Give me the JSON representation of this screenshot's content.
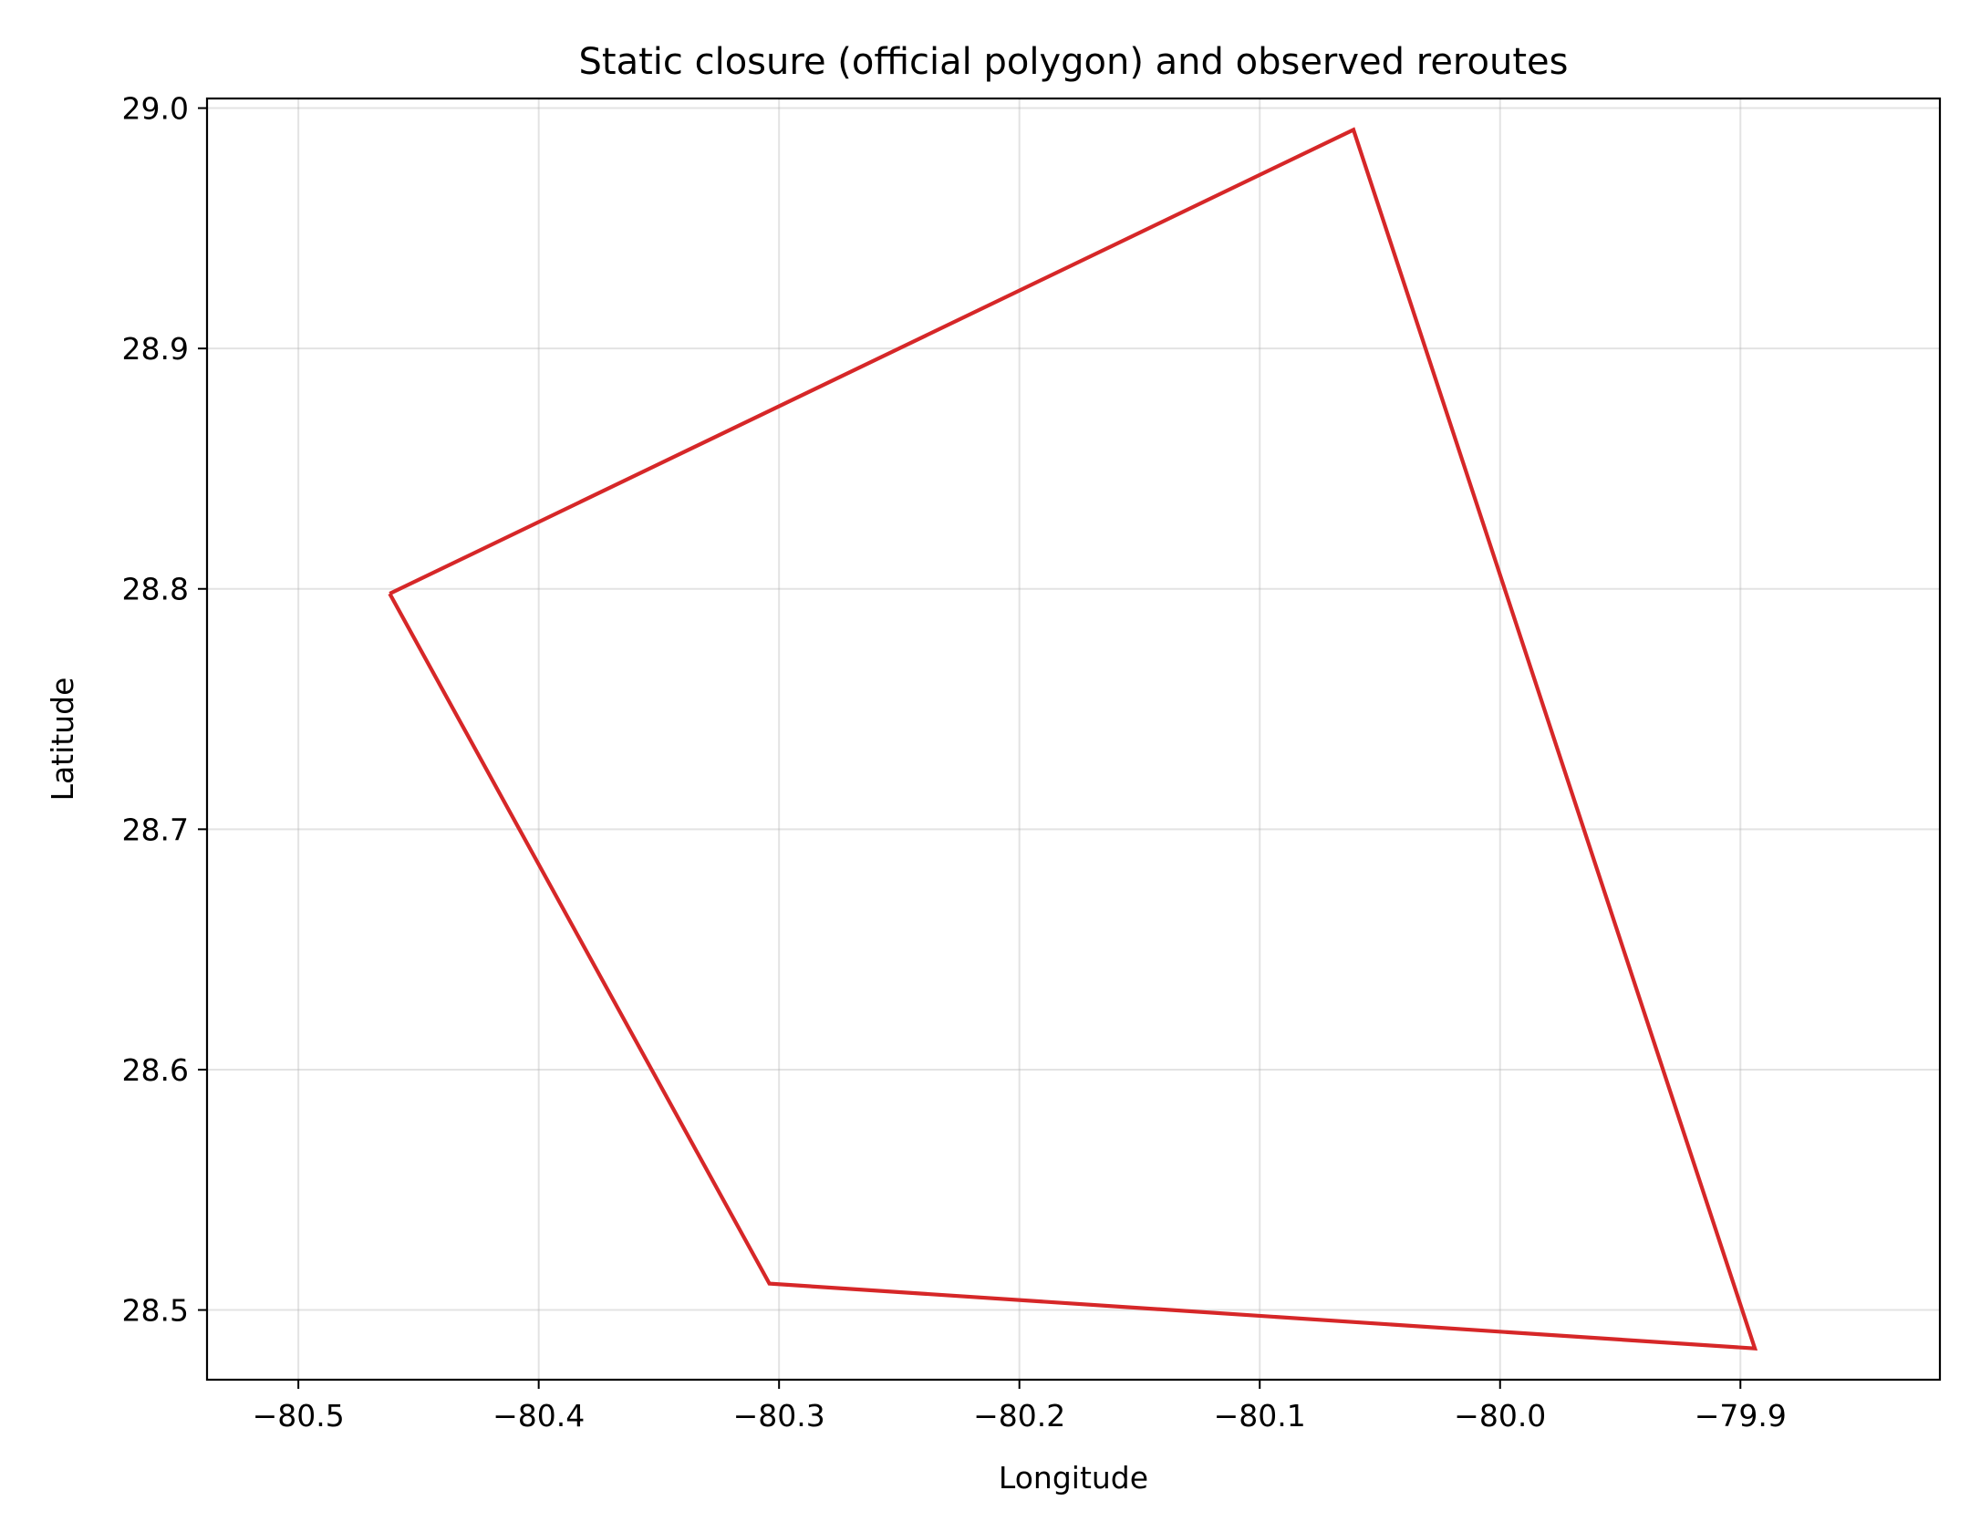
{
  "chart_data": {
    "type": "line",
    "title": "Static closure (official polygon) and observed reroutes",
    "xlabel": "Longitude",
    "ylabel": "Latitude",
    "xlim": [
      -80.538,
      -79.817
    ],
    "ylim": [
      28.471,
      29.004
    ],
    "xticks": [
      -80.5,
      -80.4,
      -80.3,
      -80.2,
      -80.1,
      -80.0,
      -79.9
    ],
    "xtick_labels": [
      "−80.5",
      "−80.4",
      "−80.3",
      "−80.2",
      "−80.1",
      "−80.0",
      "−79.9"
    ],
    "yticks": [
      28.5,
      28.6,
      28.7,
      28.8,
      28.9,
      29.0
    ],
    "ytick_labels": [
      "28.5",
      "28.6",
      "28.7",
      "28.8",
      "28.9",
      "29.0"
    ],
    "grid": true,
    "legend": false,
    "series": [
      {
        "color": "#d62728",
        "closed": true,
        "points": [
          {
            "x": -80.462,
            "y": 28.798
          },
          {
            "x": -80.061,
            "y": 28.991
          },
          {
            "x": -79.894,
            "y": 28.484
          },
          {
            "x": -80.304,
            "y": 28.511
          },
          {
            "x": -80.462,
            "y": 28.798
          }
        ]
      }
    ]
  }
}
